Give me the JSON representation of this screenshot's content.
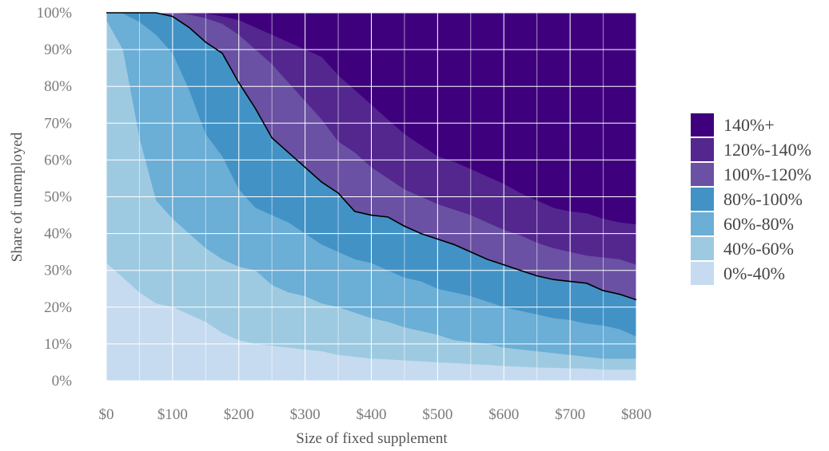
{
  "chart_data": {
    "type": "area",
    "stacked": true,
    "xlabel": "Size of fixed supplement",
    "ylabel": "Share of unemployed",
    "xlim": [
      0,
      800
    ],
    "ylim": [
      0,
      1
    ],
    "x_ticks": [
      0,
      100,
      200,
      300,
      400,
      500,
      600,
      700,
      800
    ],
    "x_tick_labels": [
      "$0",
      "$100",
      "$200",
      "$300",
      "$400",
      "$500",
      "$600",
      "$700",
      "$800"
    ],
    "y_ticks": [
      0,
      0.1,
      0.2,
      0.3,
      0.4,
      0.5,
      0.6,
      0.7,
      0.8,
      0.9,
      1.0
    ],
    "y_tick_labels": [
      "0%",
      "10%",
      "20%",
      "30%",
      "40%",
      "50%",
      "60%",
      "70%",
      "80%",
      "90%",
      "100%"
    ],
    "grid": true,
    "legend_position": "right",
    "x": [
      0,
      25,
      50,
      75,
      100,
      125,
      150,
      175,
      200,
      225,
      250,
      275,
      300,
      325,
      350,
      375,
      400,
      425,
      450,
      475,
      500,
      525,
      550,
      575,
      600,
      625,
      650,
      675,
      700,
      725,
      750,
      775,
      800
    ],
    "series": [
      {
        "name": "0%-40%",
        "color": "#c6dbef",
        "values": [
          0.32,
          0.28,
          0.24,
          0.21,
          0.2,
          0.18,
          0.16,
          0.13,
          0.11,
          0.1,
          0.095,
          0.09,
          0.085,
          0.08,
          0.07,
          0.065,
          0.06,
          0.058,
          0.055,
          0.053,
          0.05,
          0.048,
          0.045,
          0.043,
          0.04,
          0.038,
          0.036,
          0.035,
          0.034,
          0.033,
          0.03,
          0.03,
          0.03
        ]
      },
      {
        "name": "40%-60%",
        "color": "#9ecae1",
        "values": [
          0.98,
          0.9,
          0.66,
          0.49,
          0.44,
          0.4,
          0.36,
          0.33,
          0.31,
          0.3,
          0.26,
          0.24,
          0.23,
          0.21,
          0.2,
          0.185,
          0.17,
          0.16,
          0.145,
          0.135,
          0.125,
          0.11,
          0.105,
          0.1,
          0.09,
          0.085,
          0.08,
          0.075,
          0.07,
          0.065,
          0.06,
          0.06,
          0.06
        ]
      },
      {
        "name": "60%-80%",
        "color": "#6baed6",
        "values": [
          1.0,
          0.998,
          0.975,
          0.94,
          0.89,
          0.79,
          0.67,
          0.61,
          0.52,
          0.47,
          0.45,
          0.43,
          0.4,
          0.37,
          0.35,
          0.33,
          0.32,
          0.3,
          0.28,
          0.27,
          0.25,
          0.24,
          0.23,
          0.215,
          0.2,
          0.19,
          0.18,
          0.17,
          0.165,
          0.155,
          0.15,
          0.14,
          0.12
        ]
      },
      {
        "name": "80%-100%",
        "color": "#4292c6",
        "values": [
          1.0,
          1.0,
          1.0,
          1.0,
          0.99,
          0.96,
          0.92,
          0.89,
          0.81,
          0.74,
          0.66,
          0.62,
          0.58,
          0.54,
          0.51,
          0.46,
          0.45,
          0.445,
          0.42,
          0.4,
          0.385,
          0.37,
          0.35,
          0.33,
          0.315,
          0.3,
          0.285,
          0.275,
          0.27,
          0.265,
          0.245,
          0.235,
          0.22
        ]
      },
      {
        "name": "100%-120%",
        "color": "#6a51a3",
        "values": [
          1.0,
          1.0,
          1.0,
          1.0,
          1.0,
          0.995,
          0.985,
          0.97,
          0.94,
          0.9,
          0.86,
          0.81,
          0.76,
          0.71,
          0.65,
          0.62,
          0.58,
          0.55,
          0.52,
          0.5,
          0.48,
          0.465,
          0.45,
          0.43,
          0.41,
          0.395,
          0.375,
          0.36,
          0.35,
          0.34,
          0.335,
          0.33,
          0.315
        ]
      },
      {
        "name": "120%-140%",
        "color": "#54278f",
        "values": [
          1.0,
          1.0,
          1.0,
          1.0,
          1.0,
          1.0,
          0.998,
          0.99,
          0.98,
          0.96,
          0.94,
          0.92,
          0.9,
          0.88,
          0.83,
          0.79,
          0.75,
          0.71,
          0.67,
          0.64,
          0.61,
          0.595,
          0.575,
          0.555,
          0.535,
          0.51,
          0.49,
          0.47,
          0.46,
          0.455,
          0.44,
          0.43,
          0.425
        ]
      },
      {
        "name": "140%+",
        "color": "#3f007d",
        "values": [
          1.0,
          1.0,
          1.0,
          1.0,
          1.0,
          1.0,
          1.0,
          1.0,
          1.0,
          1.0,
          1.0,
          1.0,
          1.0,
          1.0,
          1.0,
          1.0,
          1.0,
          1.0,
          1.0,
          1.0,
          1.0,
          1.0,
          1.0,
          1.0,
          1.0,
          1.0,
          1.0,
          1.0,
          1.0,
          1.0,
          1.0,
          1.0,
          1.0
        ]
      }
    ],
    "series_values_are_cumulative": true,
    "highlight_line": {
      "color": "#000000",
      "follows_series": "80%-100%"
    },
    "legend_order": [
      "140%+",
      "120%-140%",
      "100%-120%",
      "80%-100%",
      "60%-80%",
      "40%-60%",
      "0%-40%"
    ]
  }
}
